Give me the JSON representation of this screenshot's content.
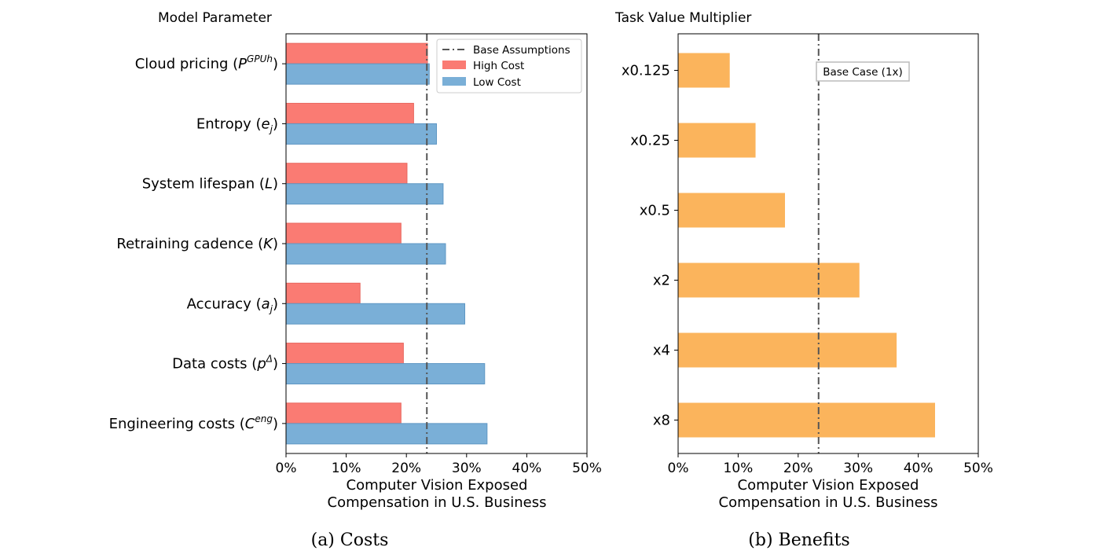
{
  "chart_data": [
    {
      "type": "bar",
      "orientation": "horizontal",
      "title": "Model Parameter",
      "caption": "(a) Costs",
      "xlabel_line1": "Computer Vision Exposed",
      "xlabel_line2": "Compensation in U.S. Business",
      "xlim": [
        0,
        50
      ],
      "xticks": [
        "0%",
        "10%",
        "20%",
        "30%",
        "40%",
        "50%"
      ],
      "categories": [
        {
          "base": "Cloud pricing (",
          "var": "P",
          "sup": "GPUh",
          "sub": "",
          "close": ")"
        },
        {
          "base": "Entropy (",
          "var": "e",
          "sup": "",
          "sub": "j",
          "close": ")"
        },
        {
          "base": "System lifespan (",
          "var": "L",
          "sup": "",
          "sub": "",
          "close": ")"
        },
        {
          "base": "Retraining cadence (",
          "var": "K",
          "sup": "",
          "sub": "",
          "close": ")"
        },
        {
          "base": "Accuracy (",
          "var": "a",
          "sup": "",
          "sub": "j",
          "close": ")"
        },
        {
          "base": "Data costs (",
          "var": "p",
          "sup": "Δ",
          "sub": "",
          "close": ")"
        },
        {
          "base": "Engineering costs (",
          "var": "C",
          "sup": "eng",
          "sub": "",
          "close": ")"
        }
      ],
      "series": [
        {
          "name": "High Cost",
          "color": "#fa7b73",
          "values": [
            23.5,
            21.2,
            20.1,
            19.1,
            12.3,
            19.5,
            19.1
          ]
        },
        {
          "name": "Low Cost",
          "color": "#7aafd7",
          "values": [
            23.8,
            25.0,
            26.1,
            26.5,
            29.7,
            33.0,
            33.4
          ]
        }
      ],
      "reference_line": {
        "name": "Base Assumptions",
        "value": 23.4
      },
      "legend": "top-right",
      "grid": false
    },
    {
      "type": "bar",
      "orientation": "horizontal",
      "title": "Task Value Multiplier",
      "caption": "(b) Benefits",
      "xlabel_line1": "Computer Vision Exposed",
      "xlabel_line2": "Compensation in U.S. Business",
      "xlim": [
        0,
        50
      ],
      "xticks": [
        "0%",
        "10%",
        "20%",
        "30%",
        "40%",
        "50%"
      ],
      "categories": [
        "x0.125",
        "x0.25",
        "x0.5",
        "x2",
        "x4",
        "x8"
      ],
      "series": [
        {
          "name": "",
          "color": "#fbb45c",
          "values": [
            8.6,
            12.9,
            17.8,
            30.2,
            36.4,
            42.8
          ]
        }
      ],
      "reference_line": {
        "name": "Base Case (1x)",
        "value": 23.4
      },
      "grid": false
    }
  ]
}
